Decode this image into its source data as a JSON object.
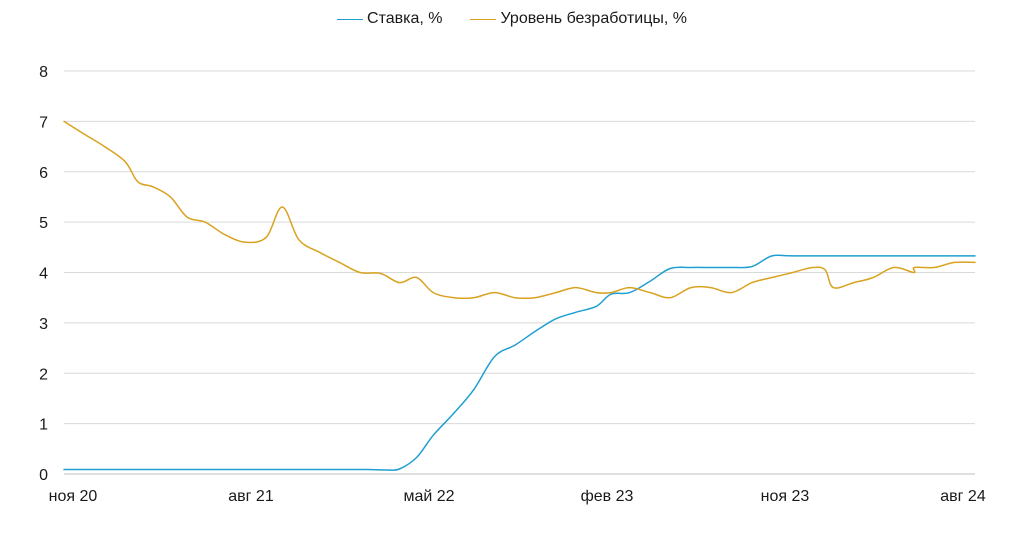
{
  "chart_data": {
    "type": "line",
    "title": "",
    "xlabel": "",
    "ylabel": "",
    "ylim": [
      0,
      8
    ],
    "yticks": [
      "0",
      "1",
      "2",
      "3",
      "4",
      "5",
      "6",
      "7",
      "8"
    ],
    "xticks": [
      "ноя 20",
      "авг 21",
      "май 22",
      "фев 23",
      "ноя 23",
      "авг 24"
    ],
    "grid": "horizontal",
    "legend": "top-center",
    "series": [
      {
        "name": "Ставка, %",
        "color": "#1f9fd1",
        "points": [
          [
            "2020-11-01",
            0.09
          ],
          [
            "2021-02-01",
            0.09
          ],
          [
            "2021-05-01",
            0.09
          ],
          [
            "2021-08-01",
            0.09
          ],
          [
            "2021-11-01",
            0.09
          ],
          [
            "2022-01-01",
            0.09
          ],
          [
            "2022-02-01",
            0.09
          ],
          [
            "2022-03-01",
            0.08
          ],
          [
            "2022-03-20",
            0.1
          ],
          [
            "2022-04-15",
            0.33
          ],
          [
            "2022-05-10",
            0.77
          ],
          [
            "2022-06-10",
            1.21
          ],
          [
            "2022-07-10",
            1.68
          ],
          [
            "2022-08-10",
            2.33
          ],
          [
            "2022-09-10",
            2.56
          ],
          [
            "2022-10-10",
            2.83
          ],
          [
            "2022-11-10",
            3.08
          ],
          [
            "2022-12-10",
            3.21
          ],
          [
            "2023-01-10",
            3.33
          ],
          [
            "2023-02-01",
            3.57
          ],
          [
            "2023-03-01",
            3.6
          ],
          [
            "2023-04-01",
            3.83
          ],
          [
            "2023-05-01",
            4.08
          ],
          [
            "2023-06-01",
            4.1
          ],
          [
            "2023-07-01",
            4.1
          ],
          [
            "2023-08-01",
            4.1
          ],
          [
            "2023-09-01",
            4.12
          ],
          [
            "2023-10-01",
            4.33
          ],
          [
            "2023-11-01",
            4.33
          ],
          [
            "2024-02-01",
            4.33
          ],
          [
            "2024-05-01",
            4.33
          ],
          [
            "2024-08-01",
            4.33
          ]
        ]
      },
      {
        "name": "Уровень безработицы, %",
        "color": "#d9a21f",
        "points": [
          [
            "2020-11-01",
            7.0
          ],
          [
            "2020-12-01",
            6.75
          ],
          [
            "2021-01-01",
            6.5
          ],
          [
            "2021-02-01",
            6.2
          ],
          [
            "2021-02-20",
            5.8
          ],
          [
            "2021-03-15",
            5.7
          ],
          [
            "2021-04-10",
            5.5
          ],
          [
            "2021-05-05",
            5.1
          ],
          [
            "2021-06-01",
            5.0
          ],
          [
            "2021-07-01",
            4.75
          ],
          [
            "2021-08-01",
            4.6
          ],
          [
            "2021-09-01",
            4.7
          ],
          [
            "2021-09-25",
            5.3
          ],
          [
            "2021-10-20",
            4.65
          ],
          [
            "2021-11-20",
            4.4
          ],
          [
            "2021-12-20",
            4.2
          ],
          [
            "2022-01-20",
            4.0
          ],
          [
            "2022-02-20",
            3.98
          ],
          [
            "2022-03-20",
            3.8
          ],
          [
            "2022-04-15",
            3.9
          ],
          [
            "2022-05-10",
            3.6
          ],
          [
            "2022-06-10",
            3.5
          ],
          [
            "2022-07-10",
            3.5
          ],
          [
            "2022-08-10",
            3.6
          ],
          [
            "2022-09-10",
            3.5
          ],
          [
            "2022-10-10",
            3.5
          ],
          [
            "2022-11-10",
            3.6
          ],
          [
            "2022-12-10",
            3.7
          ],
          [
            "2023-01-10",
            3.6
          ],
          [
            "2023-02-01",
            3.6
          ],
          [
            "2023-03-01",
            3.7
          ],
          [
            "2023-04-01",
            3.6
          ],
          [
            "2023-05-01",
            3.5
          ],
          [
            "2023-06-01",
            3.7
          ],
          [
            "2023-07-01",
            3.7
          ],
          [
            "2023-08-01",
            3.6
          ],
          [
            "2023-09-01",
            3.8
          ],
          [
            "2023-10-01",
            3.9
          ],
          [
            "2023-11-01",
            4.0
          ],
          [
            "2023-12-01",
            4.1
          ],
          [
            "2023-12-20",
            4.05
          ],
          [
            "2024-01-01",
            3.7
          ],
          [
            "2024-02-01",
            3.8
          ],
          [
            "2024-03-01",
            3.9
          ],
          [
            "2024-04-01",
            4.1
          ],
          [
            "2024-05-01",
            4.0
          ],
          [
            "2024-05-02",
            4.1
          ],
          [
            "2024-06-01",
            4.1
          ],
          [
            "2024-07-01",
            4.2
          ],
          [
            "2024-08-01",
            4.2
          ]
        ]
      }
    ]
  }
}
